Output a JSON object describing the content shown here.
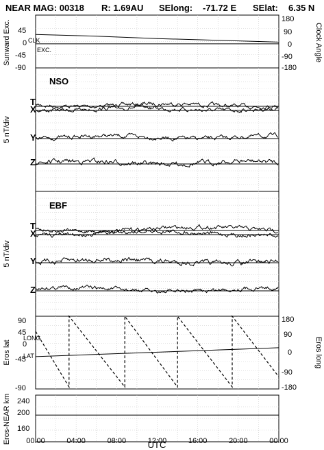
{
  "header": {
    "title": "NEAR MAG: 00318",
    "r_text": "R: 1.69AU",
    "selong_label": "SElong:",
    "selong_value": "-71.72 E",
    "selat_label": "SElat:",
    "selat_value": "6.35 N"
  },
  "chart_data": [
    {
      "type": "line",
      "ylabel": "Sunward Exc.",
      "ylabel_right": "Clock Angle",
      "left_ticks": [
        "45",
        "0",
        "-45",
        "-90"
      ],
      "right_ticks": [
        "180",
        "90",
        "0",
        "-90",
        "-180"
      ],
      "ylim": [
        -90,
        90
      ],
      "annotations": [
        "CLK",
        "EXC."
      ],
      "grid": true,
      "series": [
        {
          "name": "CLK",
          "x": [
            0,
            6,
            12,
            18,
            24
          ],
          "values": [
            24,
            18,
            10,
            4,
            -2
          ]
        },
        {
          "name": "EXC.",
          "x": [
            0,
            24
          ],
          "values": [
            -8,
            -8
          ]
        }
      ]
    },
    {
      "type": "line",
      "panel_label": "NSO",
      "ylabel": "5 nT/div",
      "channels": [
        "T",
        "X",
        "Y",
        "Z"
      ],
      "grid": true
    },
    {
      "type": "line",
      "panel_label": "EBF",
      "ylabel": "5 nT/div",
      "channels": [
        "T",
        "X",
        "Y",
        "Z"
      ],
      "grid": true
    },
    {
      "type": "line",
      "ylabel": "Eros lat",
      "ylabel_right": "Eros long",
      "left_ticks": [
        "90",
        "45",
        "0",
        "-45",
        "-90"
      ],
      "right_ticks": [
        "180",
        "90",
        "0",
        "-90",
        "-180"
      ],
      "ylim": [
        -90,
        90
      ],
      "annotations": [
        "LONG",
        "LAT"
      ],
      "grid": true,
      "series": [
        {
          "name": "LAT",
          "x": [
            0,
            24
          ],
          "values": [
            -10,
            12
          ]
        },
        {
          "name": "LONG",
          "x": [
            0,
            3.3,
            3.3,
            8.8,
            8.8,
            14,
            14,
            19.4,
            19.4,
            24
          ],
          "values": [
            105,
            -170,
            180,
            -170,
            180,
            -170,
            180,
            -170,
            180,
            -120
          ]
        }
      ]
    },
    {
      "type": "line",
      "ylabel": "Eros-NEAR km",
      "left_ticks": [
        "240",
        "200",
        "160"
      ],
      "ylim": [
        120,
        260
      ],
      "grid": true,
      "series": [
        {
          "name": "Eros-NEAR km",
          "x": [
            0,
            24
          ],
          "values": [
            200,
            200
          ]
        }
      ]
    }
  ],
  "x_axis": {
    "ticks": [
      "00:00",
      "04:00",
      "08:00",
      "12:00",
      "16:00",
      "20:00",
      "00:00"
    ],
    "label": "UTC"
  }
}
